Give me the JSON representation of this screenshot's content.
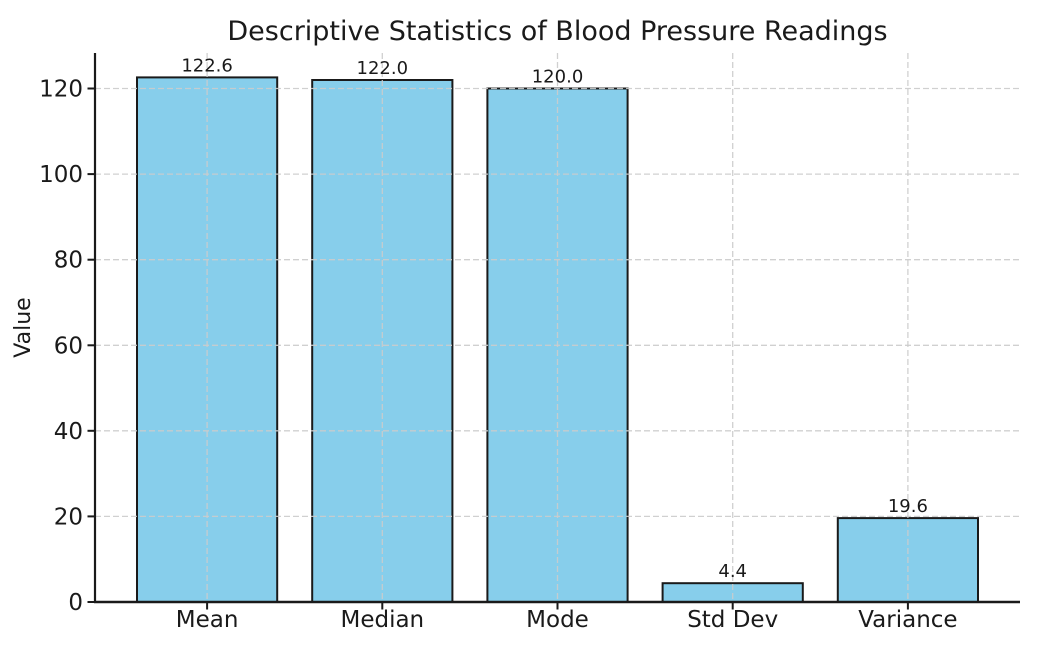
{
  "chart_data": {
    "type": "bar",
    "title": "Descriptive Statistics of Blood Pressure Readings",
    "xlabel": "",
    "ylabel": "Value",
    "categories": [
      "Mean",
      "Median",
      "Mode",
      "Std Dev",
      "Variance"
    ],
    "values": [
      122.6,
      122.0,
      120.0,
      4.4,
      19.6
    ],
    "value_labels": [
      "122.6",
      "122.0",
      "120.0",
      "4.4",
      "19.6"
    ],
    "yticks": [
      0,
      20,
      40,
      60,
      80,
      100,
      120
    ],
    "ylim": [
      0,
      128.3
    ],
    "grid": "both, dashed, drawn above bars",
    "legend": "none",
    "colors": {
      "bar_fill": "#87CEEB",
      "bar_edge": "#1a1a1a",
      "grid_line": "#cccccc",
      "spine": "#1a1a1a",
      "text": "#1a1a1a",
      "background": "#ffffff"
    }
  }
}
